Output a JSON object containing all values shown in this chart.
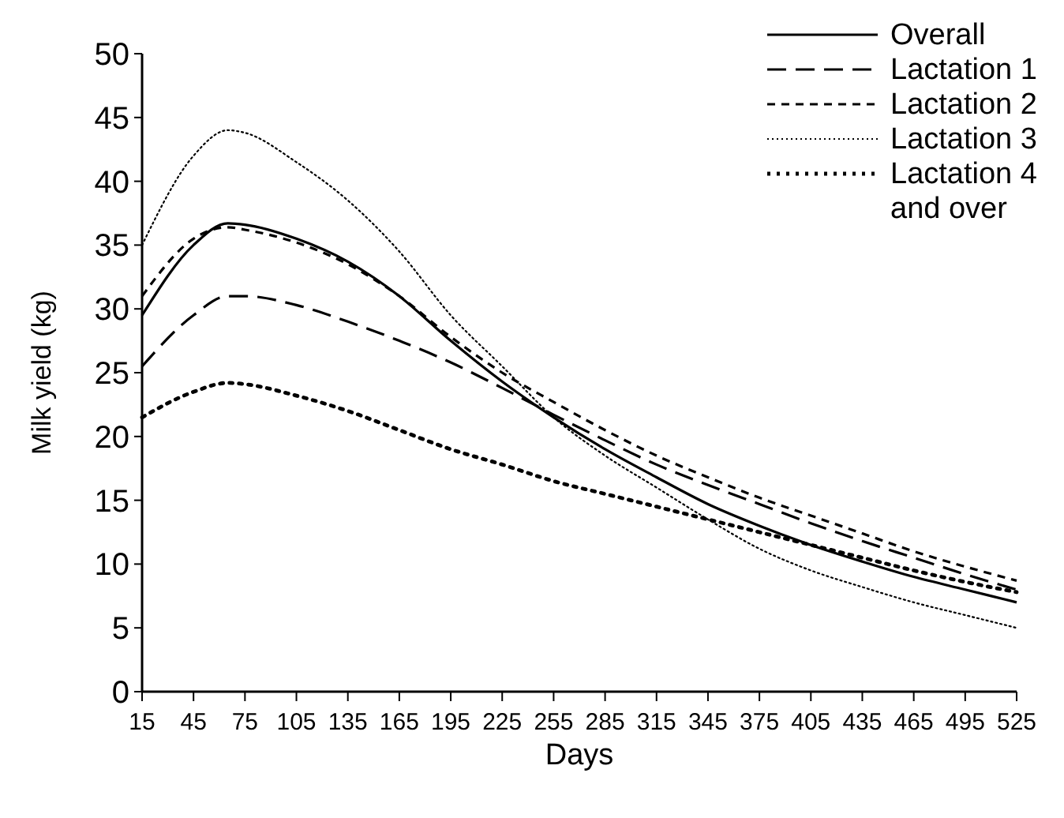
{
  "chart_data": {
    "type": "line",
    "xlabel": "Days",
    "ylabel": "Milk yield (kg)",
    "x": [
      15,
      45,
      65,
      75,
      105,
      135,
      165,
      195,
      225,
      255,
      285,
      315,
      345,
      375,
      405,
      435,
      465,
      495,
      525
    ],
    "xlim": [
      15,
      525
    ],
    "xticks": [
      15,
      45,
      75,
      105,
      135,
      165,
      195,
      225,
      255,
      285,
      315,
      345,
      375,
      405,
      435,
      465,
      495,
      525
    ],
    "ylim": [
      0,
      50
    ],
    "yticks": [
      0,
      5,
      10,
      15,
      20,
      25,
      30,
      35,
      40,
      45,
      50
    ],
    "grid": false,
    "legend": "top right",
    "marker": "none",
    "series": [
      {
        "name": "Overall",
        "color": "#000000",
        "line_style": "solid",
        "values": [
          29.5,
          35,
          36.7,
          36.6,
          35.5,
          33.7,
          31,
          27.5,
          24.3,
          21.5,
          19,
          16.8,
          14.7,
          13,
          11.5,
          10.2,
          9,
          8,
          7
        ]
      },
      {
        "name": "Lactation 1",
        "color": "#000000",
        "line_style": "dashed",
        "values": [
          25.5,
          29.5,
          31,
          31,
          30.3,
          29,
          27.5,
          25.8,
          23.8,
          21.7,
          19.7,
          17.8,
          16.2,
          14.7,
          13.2,
          11.8,
          10.5,
          9.2,
          8
        ]
      },
      {
        "name": "Lactation 2",
        "color": "#000000",
        "line_style": "dashed",
        "values": [
          31,
          35.5,
          36.4,
          36.2,
          35.2,
          33.5,
          31,
          27.8,
          25,
          22.7,
          20.5,
          18.5,
          16.8,
          15.2,
          13.8,
          12.4,
          11,
          9.8,
          8.7
        ]
      },
      {
        "name": "Lactation 3",
        "color": "#000000",
        "line_style": "dotted",
        "values": [
          35,
          42,
          44,
          43.8,
          41.5,
          38.5,
          34.5,
          29.5,
          25.5,
          21.5,
          18.5,
          16,
          13.5,
          11.2,
          9.5,
          8.2,
          7,
          6,
          5
        ]
      },
      {
        "name": "Lactation 4\nand over",
        "color": "#000000",
        "line_style": "dotted",
        "values": [
          21.5,
          23.5,
          24.2,
          24.1,
          23.2,
          22,
          20.5,
          19,
          17.8,
          16.5,
          15.5,
          14.5,
          13.5,
          12.5,
          11.5,
          10.5,
          9.5,
          8.6,
          7.8
        ]
      }
    ]
  }
}
